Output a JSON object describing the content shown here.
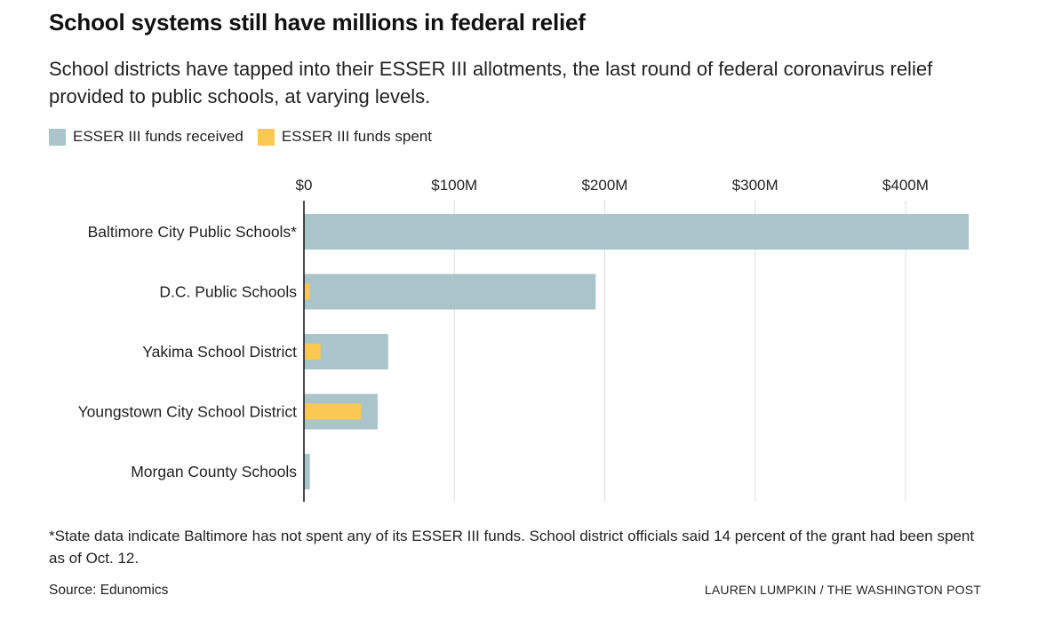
{
  "header": {
    "title": "School systems still have millions in federal relief",
    "subtitle": "School districts have tapped into their ESSER III allotments, the last round of federal coronavirus relief provided to public schools, at varying levels."
  },
  "legend": {
    "received_label": "ESSER III funds received",
    "spent_label": "ESSER III funds spent"
  },
  "colors": {
    "received": "#aac5ca",
    "spent": "#fbc851",
    "grid": "#dddddd",
    "axis": "#111111"
  },
  "chart_data": {
    "type": "bar",
    "orientation": "horizontal",
    "categories": [
      "Baltimore City Public Schools*",
      "D.C. Public Schools",
      "Yakima School District",
      "Youngstown City School District",
      "Morgan County Schools"
    ],
    "series": [
      {
        "name": "ESSER III funds received",
        "values": [
          442,
          194,
          56,
          49,
          4
        ]
      },
      {
        "name": "ESSER III funds spent",
        "values": [
          0,
          4,
          11,
          38,
          0
        ]
      }
    ],
    "x_ticks": [
      0,
      100,
      200,
      300,
      400
    ],
    "x_tick_labels": [
      "$0",
      "$100M",
      "$200M",
      "$300M",
      "$400M"
    ],
    "xlim": [
      0,
      442
    ],
    "unit": "$M",
    "grid": true,
    "legend_position": "top-left"
  },
  "footer": {
    "note": "*State data indicate Baltimore has not spent any of its ESSER III funds. School district officials said 14 percent of the grant had been spent as of Oct. 12.",
    "source": "Source: Edunomics",
    "credit": "LAUREN LUMPKIN / THE WASHINGTON POST"
  }
}
